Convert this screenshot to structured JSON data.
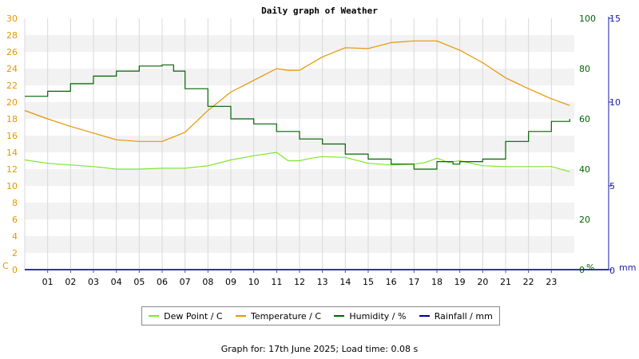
{
  "chart_data": {
    "type": "line",
    "title": "Daily graph of Weather",
    "left_axis": {
      "unit": "C",
      "min": 0,
      "max": 30,
      "ticks": [
        0,
        2,
        4,
        6,
        8,
        10,
        12,
        14,
        16,
        18,
        20,
        22,
        24,
        26,
        28,
        30
      ]
    },
    "humidity_axis": {
      "unit": "%",
      "min": 0,
      "max": 100,
      "ticks": [
        0,
        20,
        40,
        60,
        80,
        100
      ]
    },
    "rain_axis": {
      "unit": "mm",
      "min": 0,
      "max": 15,
      "ticks": [
        0,
        5,
        10,
        15
      ]
    },
    "x_ticks": [
      "01",
      "02",
      "03",
      "04",
      "05",
      "06",
      "07",
      "08",
      "09",
      "10",
      "11",
      "12",
      "13",
      "14",
      "15",
      "16",
      "17",
      "18",
      "19",
      "20",
      "21",
      "22",
      "23"
    ],
    "x_range": [
      0,
      24
    ],
    "grid": true,
    "legend_position": "bottom",
    "series": [
      {
        "name": "Dew Point / C",
        "color": "#7ee62a",
        "axis": "left",
        "points": [
          [
            0,
            13.1
          ],
          [
            1,
            12.7
          ],
          [
            2,
            12.5
          ],
          [
            3,
            12.3
          ],
          [
            4,
            12.0
          ],
          [
            5,
            12.0
          ],
          [
            6,
            12.1
          ],
          [
            7,
            12.1
          ],
          [
            8,
            12.4
          ],
          [
            9,
            13.1
          ],
          [
            10,
            13.6
          ],
          [
            11,
            14.0
          ],
          [
            11.5,
            13.0
          ],
          [
            12,
            13.0
          ],
          [
            12.5,
            13.3
          ],
          [
            13,
            13.5
          ],
          [
            14,
            13.4
          ],
          [
            15,
            12.7
          ],
          [
            16,
            12.5
          ],
          [
            17,
            12.6
          ],
          [
            17.5,
            12.8
          ],
          [
            18,
            13.3
          ],
          [
            18.5,
            12.8
          ],
          [
            19,
            13.0
          ],
          [
            20,
            12.4
          ],
          [
            21,
            12.3
          ],
          [
            22,
            12.3
          ],
          [
            23,
            12.3
          ],
          [
            23.8,
            11.7
          ]
        ]
      },
      {
        "name": "Temperature / C",
        "color": "#e69500",
        "axis": "left",
        "points": [
          [
            0,
            19.0
          ],
          [
            1,
            18.0
          ],
          [
            2,
            17.1
          ],
          [
            3,
            16.3
          ],
          [
            4,
            15.5
          ],
          [
            5,
            15.3
          ],
          [
            6,
            15.3
          ],
          [
            7,
            16.4
          ],
          [
            8,
            19.0
          ],
          [
            9,
            21.2
          ],
          [
            10,
            22.6
          ],
          [
            11,
            24.0
          ],
          [
            11.5,
            23.8
          ],
          [
            12,
            23.8
          ],
          [
            13,
            25.4
          ],
          [
            14,
            26.5
          ],
          [
            15,
            26.4
          ],
          [
            16,
            27.1
          ],
          [
            17,
            27.3
          ],
          [
            18,
            27.3
          ],
          [
            19,
            26.2
          ],
          [
            20,
            24.7
          ],
          [
            21,
            22.9
          ],
          [
            22,
            21.6
          ],
          [
            23,
            20.4
          ],
          [
            23.8,
            19.6
          ]
        ]
      },
      {
        "name": "Humidity / %",
        "color": "#006400",
        "axis": "humidity",
        "step": true,
        "points": [
          [
            0,
            69
          ],
          [
            1,
            71
          ],
          [
            2,
            74
          ],
          [
            3,
            77
          ],
          [
            4,
            79
          ],
          [
            5,
            81
          ],
          [
            6,
            81.5
          ],
          [
            6.5,
            79
          ],
          [
            7,
            72
          ],
          [
            8,
            65
          ],
          [
            9,
            60
          ],
          [
            10,
            58
          ],
          [
            11,
            55
          ],
          [
            12,
            52
          ],
          [
            13,
            50
          ],
          [
            14,
            46
          ],
          [
            15,
            44
          ],
          [
            16,
            42
          ],
          [
            17,
            40
          ],
          [
            18,
            43
          ],
          [
            18.7,
            42
          ],
          [
            19,
            43
          ],
          [
            20,
            44
          ],
          [
            21,
            51
          ],
          [
            22,
            55
          ],
          [
            23,
            59
          ],
          [
            23.8,
            60
          ]
        ]
      },
      {
        "name": "Rainfall / mm",
        "color": "#00008b",
        "axis": "rain",
        "points": [
          [
            0,
            0
          ],
          [
            24,
            0
          ]
        ]
      }
    ]
  },
  "footer": "Graph for: 17th June 2025; Load time: 0.08 s"
}
